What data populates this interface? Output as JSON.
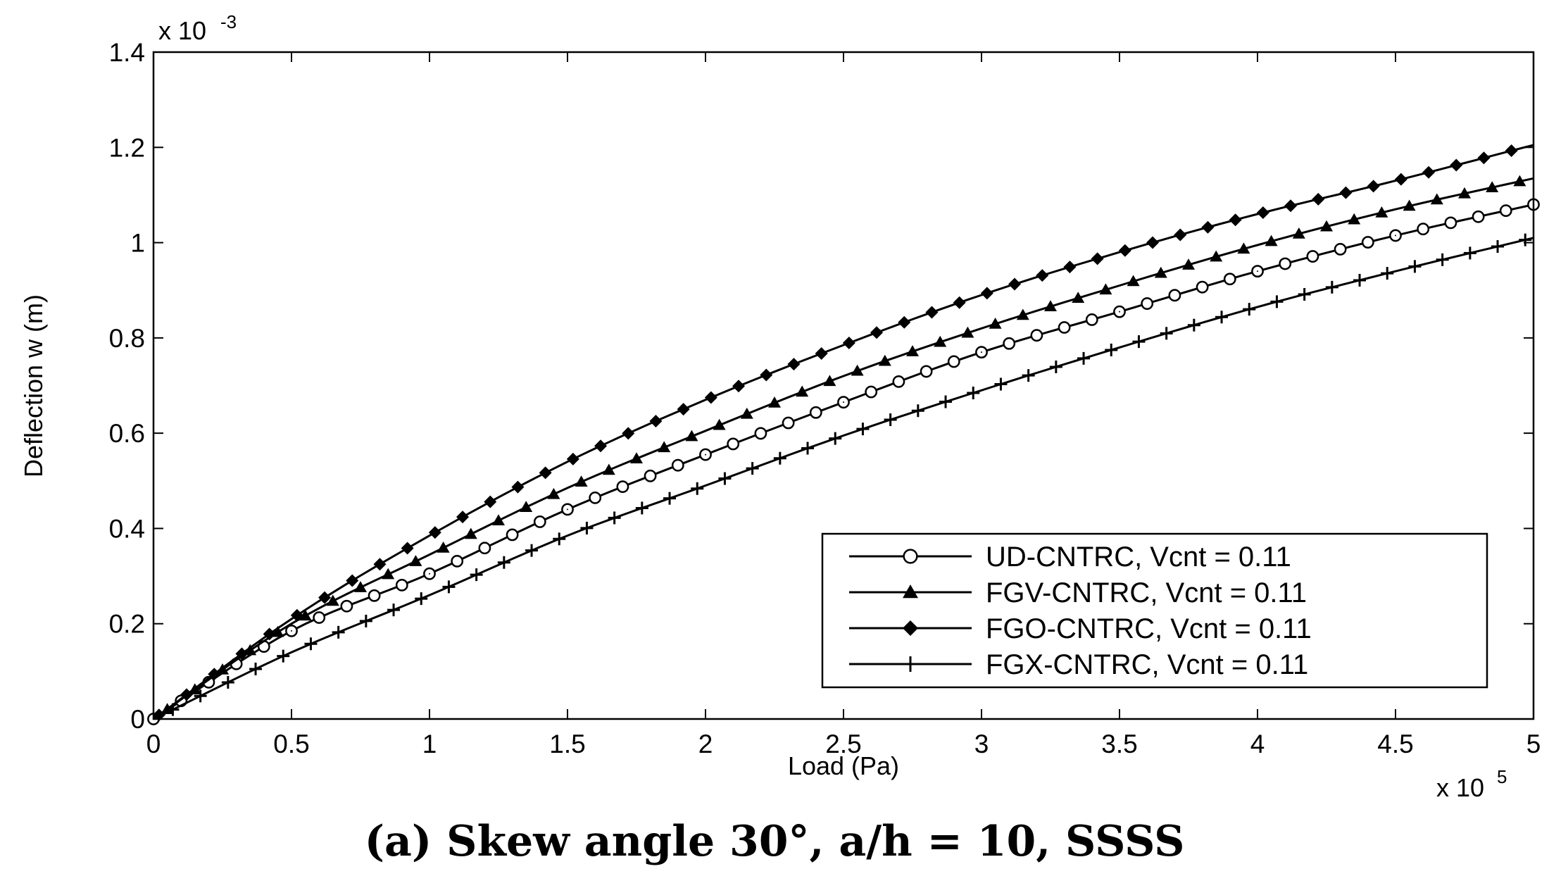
{
  "caption": "(a) Skew angle 30°, a/h = 10, SSSS",
  "chart_data": {
    "type": "line",
    "xlabel": "Load (Pa)",
    "ylabel": "Deflection w (m)",
    "x_multiplier": "x 10",
    "x_multiplier_exp": "5",
    "y_multiplier": "x 10",
    "y_multiplier_exp": "-3",
    "xlim": [
      0,
      5
    ],
    "ylim": [
      0,
      1.4
    ],
    "x_ticks": [
      "0",
      "0.5",
      "1",
      "1.5",
      "2",
      "2.5",
      "3",
      "3.5",
      "4",
      "4.5",
      "5"
    ],
    "y_ticks": [
      "0",
      "0.2",
      "0.4",
      "0.6",
      "0.8",
      "1",
      "1.2",
      "1.4"
    ],
    "grid": false,
    "legend_position": "lower-right",
    "line_color": "#000000",
    "series": [
      {
        "name": "UD-CNTRC, Vcnt = 0.11",
        "marker": "circle",
        "x": [
          0,
          0.5,
          1,
          1.5,
          2,
          2.5,
          3,
          3.5,
          4,
          4.5,
          5
        ],
        "y": [
          0,
          0.185,
          0.305,
          0.44,
          0.555,
          0.665,
          0.77,
          0.855,
          0.94,
          1.015,
          1.08
        ]
      },
      {
        "name": "FGV-CNTRC, Vcnt = 0.11",
        "marker": "triangle",
        "x": [
          0,
          0.5,
          1,
          1.5,
          2,
          2.5,
          3,
          3.5,
          4,
          4.5,
          5
        ],
        "y": [
          0,
          0.2,
          0.345,
          0.485,
          0.605,
          0.72,
          0.82,
          0.91,
          0.995,
          1.07,
          1.135
        ]
      },
      {
        "name": "FGO-CNTRC, Vcnt = 0.11",
        "marker": "diamond",
        "x": [
          0,
          0.5,
          1,
          1.5,
          2,
          2.5,
          3,
          3.5,
          4,
          4.5,
          5
        ],
        "y": [
          0,
          0.21,
          0.385,
          0.54,
          0.67,
          0.785,
          0.89,
          0.98,
          1.06,
          1.13,
          1.205
        ]
      },
      {
        "name": "FGX-CNTRC, Vcnt = 0.11",
        "marker": "plus",
        "x": [
          0,
          0.5,
          1,
          1.5,
          2,
          2.5,
          3,
          3.5,
          4,
          4.5,
          5
        ],
        "y": [
          0,
          0.14,
          0.26,
          0.385,
          0.49,
          0.595,
          0.69,
          0.78,
          0.865,
          0.94,
          1.01
        ]
      }
    ]
  }
}
